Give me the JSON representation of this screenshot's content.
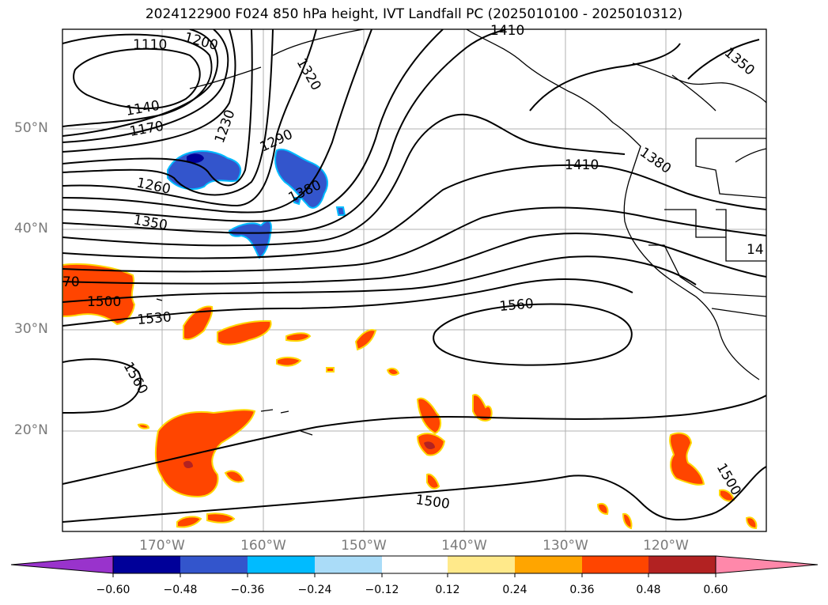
{
  "title": "2024122900 F024 850 hPa height, IVT Landfall PC (2025010100 - 2025010312)",
  "lat_labels": [
    "50°N",
    "40°N",
    "30°N",
    "20°N"
  ],
  "lon_labels": [
    "170°W",
    "160°W",
    "150°W",
    "140°W",
    "130°W",
    "120°W"
  ],
  "contour_labels": [
    "1110",
    "1200",
    "1140",
    "1170",
    "1230",
    "1320",
    "1290",
    "1260",
    "1380",
    "1350",
    "1410",
    "1380",
    "1350",
    "70",
    "1500",
    "1530",
    "1560",
    "1560",
    "1500",
    "1500",
    "14",
    "1410"
  ],
  "colorbar": {
    "tick_labels": [
      "−0.60",
      "−0.48",
      "−0.36",
      "−0.24",
      "−0.12",
      "0.12",
      "0.24",
      "0.36",
      "0.48",
      "0.60"
    ],
    "colors": [
      "#9933cc",
      "#000099",
      "#3355cc",
      "#00bbff",
      "#aadcf8",
      "#ffffff",
      "#ffe98a",
      "#ffa500",
      "#ff4500",
      "#b22222",
      "#ff88aa"
    ]
  },
  "fill_colors": {
    "negative_low": "#3355cc",
    "negative_high": "#00bbff",
    "positive_low": "#ffd700",
    "positive_mid": "#ff4500",
    "positive_high": "#b22222"
  }
}
